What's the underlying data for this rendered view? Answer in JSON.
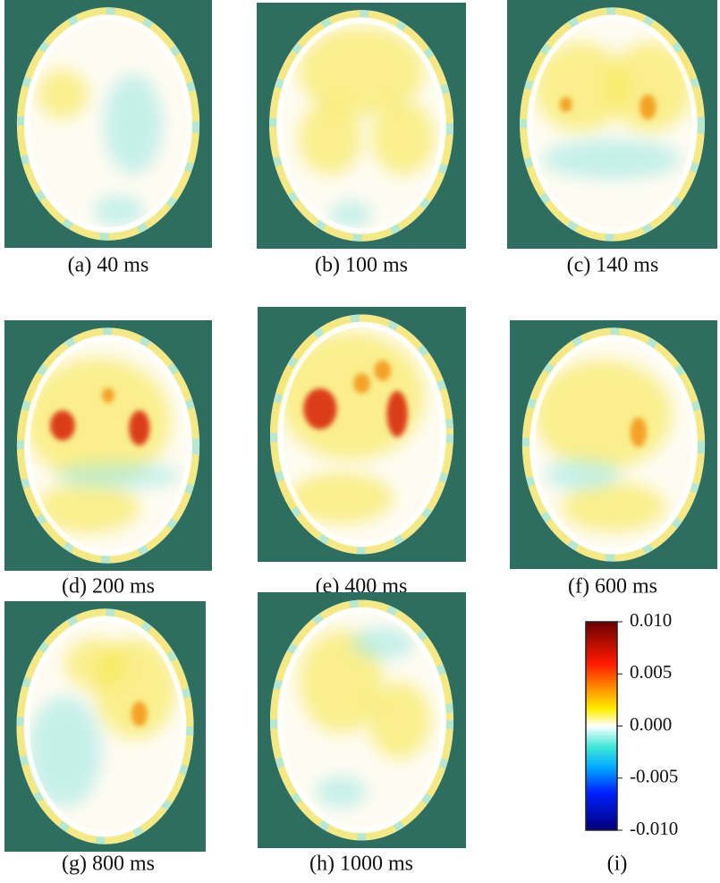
{
  "panels": [
    {
      "caption": "(a) 40 ms"
    },
    {
      "caption": "(b) 100 ms"
    },
    {
      "caption": "(c) 140 ms"
    },
    {
      "caption": "(d) 200 ms"
    },
    {
      "caption": "(e) 400 ms"
    },
    {
      "caption": "(f) 600 ms"
    },
    {
      "caption": "(g) 800 ms"
    },
    {
      "caption": "(h) 1000 ms"
    }
  ],
  "colorbar": {
    "ticks": [
      "0.010",
      "0.005",
      "0.000",
      "-0.005",
      "-0.010"
    ],
    "caption": "(i)"
  }
}
